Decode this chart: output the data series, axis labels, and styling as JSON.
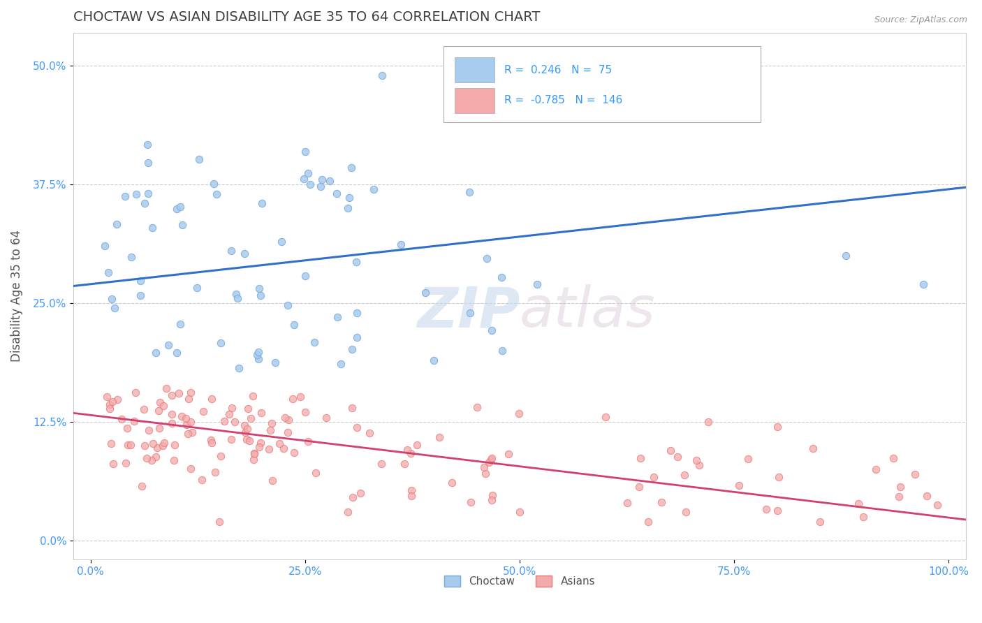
{
  "title": "CHOCTAW VS ASIAN DISABILITY AGE 35 TO 64 CORRELATION CHART",
  "source": "Source: ZipAtlas.com",
  "xlabel": "",
  "ylabel": "Disability Age 35 to 64",
  "xlim": [
    -0.02,
    1.02
  ],
  "ylim": [
    -0.02,
    0.535
  ],
  "xticks": [
    0.0,
    0.25,
    0.5,
    0.75,
    1.0
  ],
  "xticklabels": [
    "0.0%",
    "25.0%",
    "50.0%",
    "75.0%",
    "100.0%"
  ],
  "yticks": [
    0.0,
    0.125,
    0.25,
    0.375,
    0.5
  ],
  "yticklabels": [
    "0.0%",
    "12.5%",
    "25.0%",
    "37.5%",
    "50.0%"
  ],
  "choctaw_R": 0.246,
  "choctaw_N": 75,
  "asian_R": -0.785,
  "asian_N": 146,
  "choctaw_color": "#A8CCEE",
  "asian_color": "#F4AAAA",
  "choctaw_edge_color": "#7AAAD8",
  "asian_edge_color": "#E87878",
  "choctaw_line_color": "#3070C8",
  "asian_line_color": "#D04070",
  "watermark_zip": "ZIP",
  "watermark_atlas": "atlas",
  "background_color": "#FFFFFF",
  "grid_color": "#CCCCCC",
  "title_color": "#404040",
  "axis_label_color": "#555555",
  "tick_label_color": "#4499FF",
  "legend_color": "#3399FF",
  "choctaw_seed": 42,
  "asian_seed": 77,
  "dot_size": 55
}
